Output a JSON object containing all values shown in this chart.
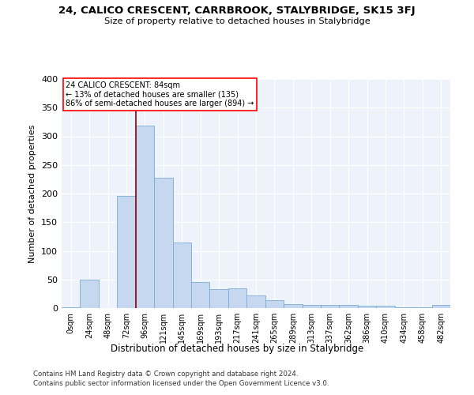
{
  "title": "24, CALICO CRESCENT, CARRBROOK, STALYBRIDGE, SK15 3FJ",
  "subtitle": "Size of property relative to detached houses in Stalybridge",
  "xlabel": "Distribution of detached houses by size in Stalybridge",
  "ylabel": "Number of detached properties",
  "bar_color": "#c5d8f0",
  "bar_edge_color": "#7aadd4",
  "background_color": "#eef2fb",
  "grid_color": "#ffffff",
  "categories": [
    "0sqm",
    "24sqm",
    "48sqm",
    "72sqm",
    "96sqm",
    "121sqm",
    "145sqm",
    "169sqm",
    "193sqm",
    "217sqm",
    "241sqm",
    "265sqm",
    "289sqm",
    "313sqm",
    "337sqm",
    "362sqm",
    "386sqm",
    "410sqm",
    "434sqm",
    "458sqm",
    "482sqm"
  ],
  "values": [
    2,
    50,
    0,
    196,
    318,
    228,
    115,
    45,
    33,
    35,
    22,
    14,
    7,
    6,
    5,
    5,
    4,
    4,
    1,
    1,
    5
  ],
  "annotation_line1": "24 CALICO CRESCENT: 84sqm",
  "annotation_line2": "← 13% of detached houses are smaller (135)",
  "annotation_line3": "86% of semi-detached houses are larger (894) →",
  "vline_x_index": 3.5,
  "ylim": [
    0,
    400
  ],
  "yticks": [
    0,
    50,
    100,
    150,
    200,
    250,
    300,
    350,
    400
  ],
  "footer_line1": "Contains HM Land Registry data © Crown copyright and database right 2024.",
  "footer_line2": "Contains public sector information licensed under the Open Government Licence v3.0."
}
